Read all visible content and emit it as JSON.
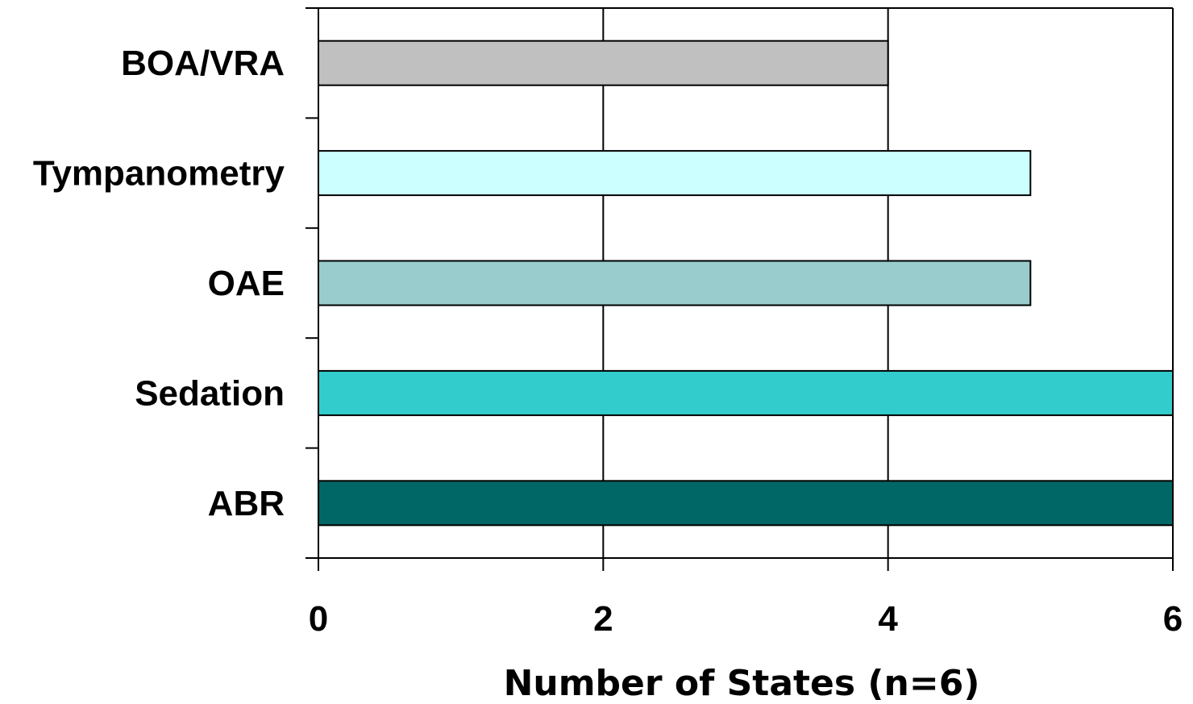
{
  "chart_data": {
    "type": "bar",
    "orientation": "horizontal",
    "categories": [
      "ABR",
      "Sedation",
      "OAE",
      "Tympanometry",
      "BOA/VRA"
    ],
    "values": [
      6,
      6,
      5,
      5,
      4
    ],
    "colors": [
      "#006666",
      "#33CCCC",
      "#99CCCC",
      "#CCFFFF",
      "#C0C0C0"
    ],
    "xlabel": "Number of States (n=6)",
    "ylabel": "",
    "title": "",
    "xlim": [
      0,
      6
    ],
    "xticks": [
      0,
      2,
      4,
      6
    ],
    "xtick_labels": [
      "0",
      "2",
      "4",
      "6"
    ],
    "grid": "vertical",
    "legend": "none"
  }
}
